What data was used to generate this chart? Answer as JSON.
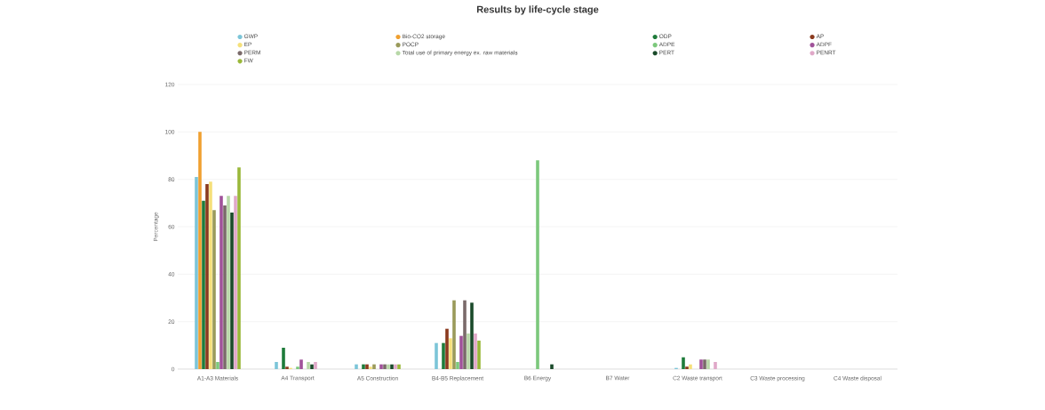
{
  "chart_data": {
    "type": "bar",
    "title": "Results by life-cycle stage",
    "ylabel": "Percentage",
    "categories": [
      "A1-A3 Materials",
      "A4 Transport",
      "A5 Construction",
      "B4-B5 Replacement",
      "B6 Energy",
      "B7 Water",
      "C2 Waste transport",
      "C3 Waste processing",
      "C4 Waste disposal"
    ],
    "series": [
      {
        "name": "GWP",
        "color": "#7cc5d8",
        "values": [
          81,
          3,
          2,
          11,
          0,
          0,
          0.5,
          0,
          0
        ]
      },
      {
        "name": "Bio-CO2 storage",
        "color": "#f0a030",
        "values": [
          100,
          0,
          0,
          0,
          0,
          0,
          0,
          0,
          0
        ]
      },
      {
        "name": "ODP",
        "color": "#1e7b3a",
        "values": [
          71,
          9,
          2,
          11,
          0,
          0,
          5,
          0,
          0
        ]
      },
      {
        "name": "AP",
        "color": "#8b3a1e",
        "values": [
          78,
          1,
          2,
          17,
          0,
          0,
          1,
          0,
          0
        ]
      },
      {
        "name": "EP",
        "color": "#f5e07a",
        "values": [
          79,
          0.5,
          1,
          13,
          0,
          0,
          2,
          0,
          0
        ]
      },
      {
        "name": "POCP",
        "color": "#9a9a5a",
        "values": [
          67,
          0,
          2,
          29,
          0,
          0,
          0,
          0,
          0
        ]
      },
      {
        "name": "ADPE",
        "color": "#7cc87c",
        "values": [
          3,
          1,
          0,
          3,
          88,
          0,
          0,
          0,
          0
        ]
      },
      {
        "name": "ADPF",
        "color": "#a0529a",
        "values": [
          73,
          4,
          2,
          14,
          0,
          0,
          4,
          0,
          0
        ]
      },
      {
        "name": "PERM",
        "color": "#7a6a6a",
        "values": [
          69,
          0,
          2,
          29,
          0,
          0,
          4,
          0,
          0
        ]
      },
      {
        "name": "Total use of primary energy ex. raw materials",
        "color": "#b8d8a8",
        "values": [
          73,
          3,
          2,
          15,
          0,
          0,
          4,
          0,
          0
        ]
      },
      {
        "name": "PERT",
        "color": "#1a4a2a",
        "values": [
          66,
          2,
          2,
          28,
          2,
          0,
          0,
          0,
          0
        ]
      },
      {
        "name": "PENRT",
        "color": "#e0a8c8",
        "values": [
          73,
          3,
          2,
          15,
          0,
          0,
          3,
          0,
          0
        ]
      },
      {
        "name": "FW",
        "color": "#9ab83a",
        "values": [
          85,
          0,
          2,
          12,
          0,
          0,
          0,
          0,
          0
        ]
      }
    ],
    "ylim": [
      0,
      120
    ],
    "yticks": [
      0,
      20,
      40,
      60,
      80,
      100,
      120
    ],
    "grid": "y",
    "legend": "top"
  }
}
